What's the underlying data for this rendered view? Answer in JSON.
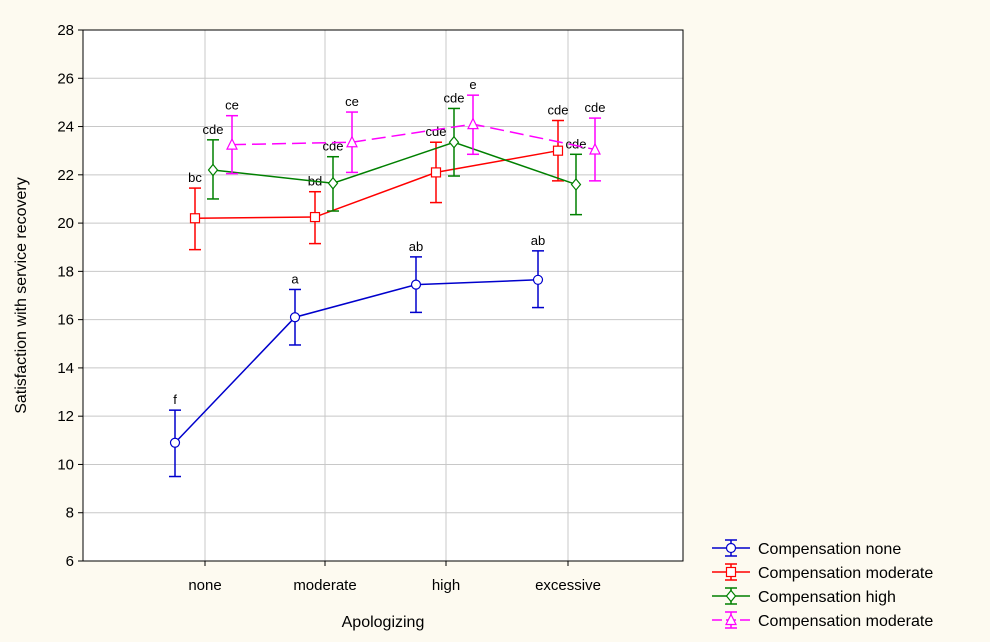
{
  "chart_data": {
    "type": "line",
    "title": "",
    "xlabel": "Apologizing",
    "ylabel": "Satisfaction with service recovery",
    "categories": [
      "none",
      "moderate",
      "high",
      "excessive"
    ],
    "ylim": [
      6,
      28
    ],
    "yticks": [
      6,
      8,
      10,
      12,
      14,
      16,
      18,
      20,
      22,
      24,
      26,
      28
    ],
    "grid": true,
    "legend_position": "bottom-right",
    "series": [
      {
        "name": "Compensation none",
        "color": "#0000cc",
        "marker": "circle",
        "dashed": false,
        "offset_index": 0,
        "values": [
          10.9,
          16.1,
          17.45,
          17.65
        ],
        "err_low": [
          9.5,
          14.95,
          16.3,
          16.5
        ],
        "err_high": [
          12.25,
          17.25,
          18.6,
          18.85
        ],
        "labels": [
          "f",
          "a",
          "ab",
          "ab"
        ]
      },
      {
        "name": "Compensation moderate",
        "color": "#ff0000",
        "marker": "square",
        "dashed": false,
        "offset_index": 1,
        "values": [
          20.2,
          20.25,
          22.1,
          23.0
        ],
        "err_low": [
          18.9,
          19.15,
          20.85,
          21.75
        ],
        "err_high": [
          21.45,
          21.3,
          23.35,
          24.25
        ],
        "labels": [
          "bc",
          "bd",
          "cde",
          "cde"
        ]
      },
      {
        "name": "Compensation high",
        "color": "#008000",
        "marker": "diamond",
        "dashed": false,
        "offset_index": 2,
        "values": [
          22.2,
          21.65,
          23.35,
          21.6
        ],
        "err_low": [
          21.0,
          20.5,
          21.95,
          20.35
        ],
        "err_high": [
          23.45,
          22.75,
          24.75,
          22.85
        ],
        "labels": [
          "cde",
          "cde",
          "cde",
          "cde"
        ]
      },
      {
        "name": "Compensation moderate",
        "color": "#ff00ff",
        "marker": "triangle",
        "dashed": true,
        "offset_index": 3,
        "values": [
          23.25,
          23.35,
          24.1,
          23.05
        ],
        "err_low": [
          22.05,
          22.1,
          22.85,
          21.75
        ],
        "err_high": [
          24.45,
          24.6,
          25.3,
          24.35
        ],
        "labels": [
          "ce",
          "ce",
          "e",
          "cde"
        ]
      }
    ]
  }
}
